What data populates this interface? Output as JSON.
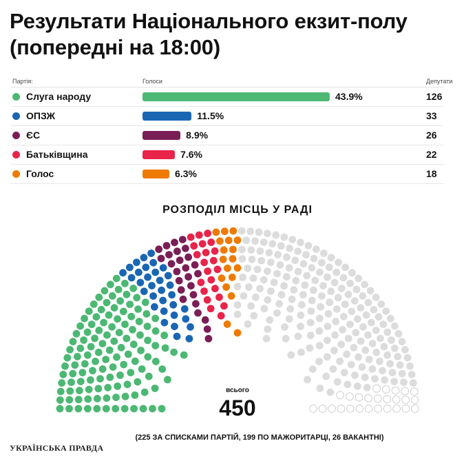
{
  "title_line1": "Результати Національного екзит-полу",
  "title_line2": "(попередні на 18:00)",
  "table_headers": {
    "party": "Партія:",
    "votes": "Голоси",
    "deputies": "Депутати"
  },
  "hemicycle_title": "РОЗПОДІЛ МІСЦЬ У РАДІ",
  "total_label": "всього",
  "total_value": "450",
  "footnote": "(225 ЗА СПИСКАМИ ПАРТІЙ, 199 ПО МАЖОРИТАРЦІ, 26 ВАКАНТНІ)",
  "logo": "УКРАЇНСЬКА ПРАВДА",
  "empty_color": "#dcdcdc",
  "chart_data": [
    {
      "type": "bar",
      "categories": [
        "Слуга народу",
        "ОПЗЖ",
        "ЄС",
        "Батьківщина",
        "Голос"
      ],
      "values": [
        43.9,
        11.5,
        8.9,
        7.6,
        6.3
      ],
      "value_labels": [
        "43.9%",
        "11.5%",
        "8.9%",
        "7.6%",
        "6.3%"
      ],
      "seats": [
        "126",
        "33",
        "26",
        "22",
        "18"
      ],
      "colors": [
        "#4cb873",
        "#1a66b3",
        "#7a1f56",
        "#e8244a",
        "#ef7a00"
      ],
      "title": "",
      "xlabel": "Голоси",
      "ylabel": "Партія:"
    },
    {
      "type": "hemicycle",
      "title": "РОЗПОДІЛ МІСЦЬ У РАДІ",
      "parties": [
        "Слуга народу",
        "ОПЗЖ",
        "ЄС",
        "Батьківщина",
        "Голос"
      ],
      "seats": [
        126,
        33,
        26,
        22,
        18
      ],
      "colors": [
        "#4cb873",
        "#1a66b3",
        "#7a1f56",
        "#e8244a",
        "#ef7a00"
      ],
      "party_list_seats": 225,
      "single_member_seats": 199,
      "vacant_seats": 26,
      "total": 450
    }
  ]
}
